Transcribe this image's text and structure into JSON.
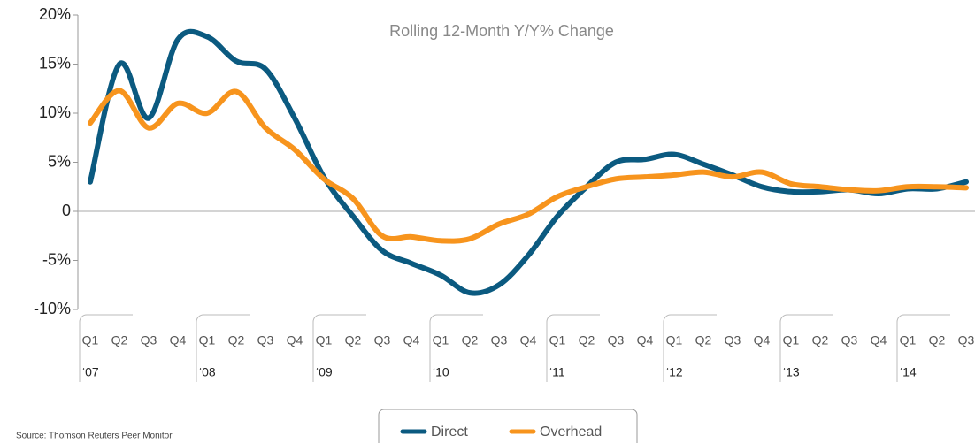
{
  "chart_data": {
    "type": "line",
    "title": "Rolling 12-Month Y/Y% Change",
    "source": "Source: Thomson Reuters Peer Monitor",
    "categories": [
      "Q1",
      "Q2",
      "Q3",
      "Q4",
      "Q1",
      "Q2",
      "Q3",
      "Q4",
      "Q1",
      "Q2",
      "Q3",
      "Q4",
      "Q1",
      "Q2",
      "Q3",
      "Q4",
      "Q1",
      "Q2",
      "Q3",
      "Q4",
      "Q1",
      "Q2",
      "Q3",
      "Q4",
      "Q1",
      "Q2",
      "Q3",
      "Q4",
      "Q1",
      "Q2",
      "Q3"
    ],
    "year_labels": [
      "‘07",
      null,
      null,
      null,
      "‘08",
      null,
      null,
      null,
      "‘09",
      null,
      null,
      null,
      "‘10",
      null,
      null,
      null,
      "‘11",
      null,
      null,
      null,
      "‘12",
      null,
      null,
      null,
      "‘13",
      null,
      null,
      null,
      "‘14",
      null,
      null
    ],
    "series": [
      {
        "name": "Direct",
        "color": "#0b5a80",
        "values": [
          3,
          15,
          9.5,
          17.5,
          17.8,
          15.3,
          14.5,
          9.5,
          3.5,
          -0.5,
          -4,
          -5.3,
          -6.5,
          -8.3,
          -7.5,
          -4.5,
          -0.5,
          2.5,
          5,
          5.3,
          5.8,
          4.8,
          3.7,
          2.5,
          2,
          2,
          2.2,
          1.8,
          2.3,
          2.3,
          3
        ]
      },
      {
        "name": "Overhead",
        "color": "#f7941d",
        "values": [
          9,
          12.3,
          8.5,
          11,
          10,
          12.2,
          8.5,
          6.3,
          3.3,
          1.3,
          -2.5,
          -2.6,
          -3,
          -2.8,
          -1.3,
          -0.3,
          1.5,
          2.5,
          3.3,
          3.5,
          3.7,
          4,
          3.5,
          4,
          2.8,
          2.5,
          2.2,
          2.1,
          2.5,
          2.5,
          2.4
        ]
      }
    ],
    "ylim": [
      -10,
      20
    ],
    "yticks": [
      {
        "value": -10,
        "label": "-10%"
      },
      {
        "value": -5,
        "label": "-5%"
      },
      0,
      {
        "value": 5,
        "label": "5%"
      },
      {
        "value": 10,
        "label": "10%"
      },
      {
        "value": 15,
        "label": "15%"
      },
      {
        "value": 20,
        "label": "20%"
      }
    ],
    "zero_line": true
  }
}
